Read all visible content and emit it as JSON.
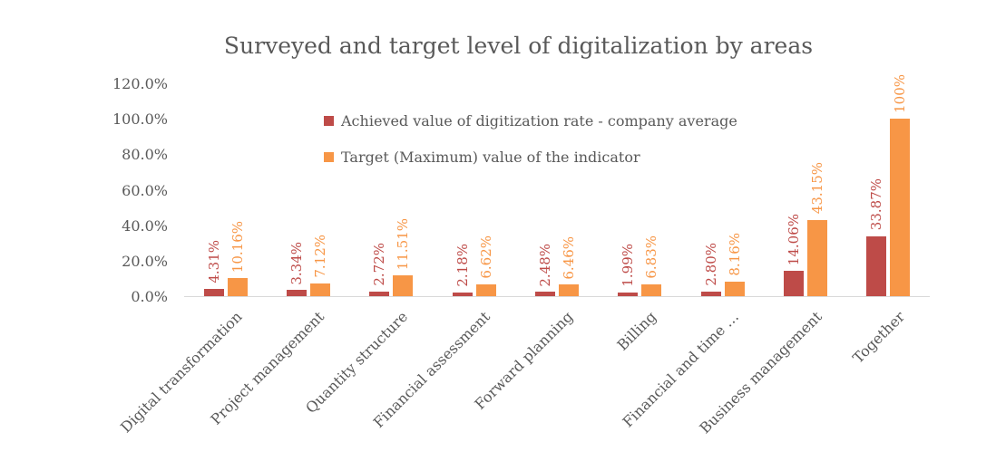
{
  "page": {
    "background": "#ffffff"
  },
  "chart_data": {
    "type": "bar",
    "title": "Surveyed and target level of digitalization by areas",
    "categories": [
      "Digital transformation",
      "Project management",
      "Quantity structure",
      "Financial assessment",
      "Forward planning",
      "Billing",
      "Financial and time …",
      "Business management",
      "Together"
    ],
    "series": [
      {
        "name": "Achieved value of digitization rate - company average",
        "color": "#be4b48",
        "values": [
          4.31,
          3.34,
          2.72,
          2.18,
          2.48,
          1.99,
          2.8,
          14.06,
          33.87
        ],
        "labels": [
          "4.31%",
          "3.34%",
          "2.72%",
          "2.18%",
          "2.48%",
          "1.99%",
          "2.80%",
          "14.06%",
          "33.87%"
        ]
      },
      {
        "name": "Target (Maximum) value of the indicator",
        "color": "#f79646",
        "values": [
          10.16,
          7.12,
          11.51,
          6.62,
          6.46,
          6.83,
          8.16,
          43.15,
          100
        ],
        "labels": [
          "10.16%",
          "7.12%",
          "11.51%",
          "6.62%",
          "6.46%",
          "6.83%",
          "8.16%",
          "43.15%",
          "100%"
        ]
      }
    ],
    "y_axis": {
      "min": 0,
      "max": 120,
      "ticks": [
        {
          "label": "120.0%",
          "value": 120
        },
        {
          "label": "100.0%",
          "value": 100
        },
        {
          "label": "80.0%",
          "value": 80
        },
        {
          "label": "60.0%",
          "value": 60
        },
        {
          "label": "40.0%",
          "value": 40
        },
        {
          "label": "20.0%",
          "value": 20
        },
        {
          "label": "0.0%",
          "value": 0
        }
      ]
    },
    "legend_position": "upper-center-inside",
    "grid": false,
    "value_labels_rotated": true,
    "colors": {
      "text": "#595959",
      "axis_line": "#d9d9d9",
      "background": "#ffffff"
    }
  }
}
